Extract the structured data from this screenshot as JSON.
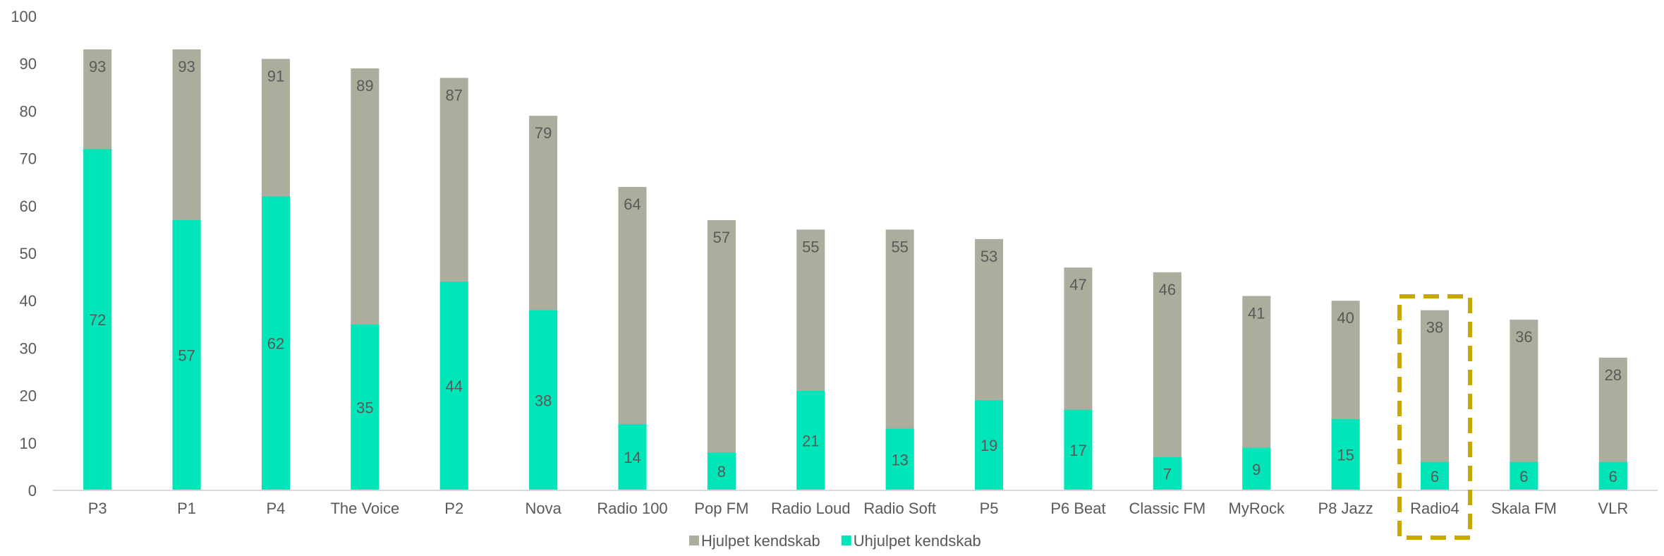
{
  "chart_data": {
    "type": "bar",
    "stacked": false,
    "overlapping": true,
    "categories": [
      "P3",
      "P1",
      "P4",
      "The Voice",
      "P2",
      "Nova",
      "Radio 100",
      "Pop FM",
      "Radio Loud",
      "Radio Soft",
      "P5",
      "P6 Beat",
      "Classic FM",
      "MyRock",
      "P8 Jazz",
      "Radio4",
      "Skala FM",
      "VLR"
    ],
    "series": [
      {
        "name": "Hjulpet kendskab",
        "color": "#adad9d",
        "values": [
          93,
          93,
          91,
          89,
          87,
          79,
          64,
          57,
          55,
          55,
          53,
          47,
          46,
          41,
          40,
          38,
          36,
          28
        ]
      },
      {
        "name": "Uhjulpet kendskab",
        "color": "#00e6b8",
        "values": [
          72,
          57,
          62,
          35,
          44,
          38,
          14,
          8,
          21,
          13,
          19,
          17,
          7,
          9,
          15,
          6,
          6,
          6
        ]
      }
    ],
    "ylim": [
      0,
      100
    ],
    "yticks": [
      0,
      10,
      20,
      30,
      40,
      50,
      60,
      70,
      80,
      90,
      100
    ],
    "grid": false,
    "legend_position": "bottom",
    "highlight": {
      "category": "Radio4",
      "color": "#c8a800",
      "style": "dashed"
    },
    "label_color": "#595959",
    "axis_color": "#d9d9d9"
  }
}
